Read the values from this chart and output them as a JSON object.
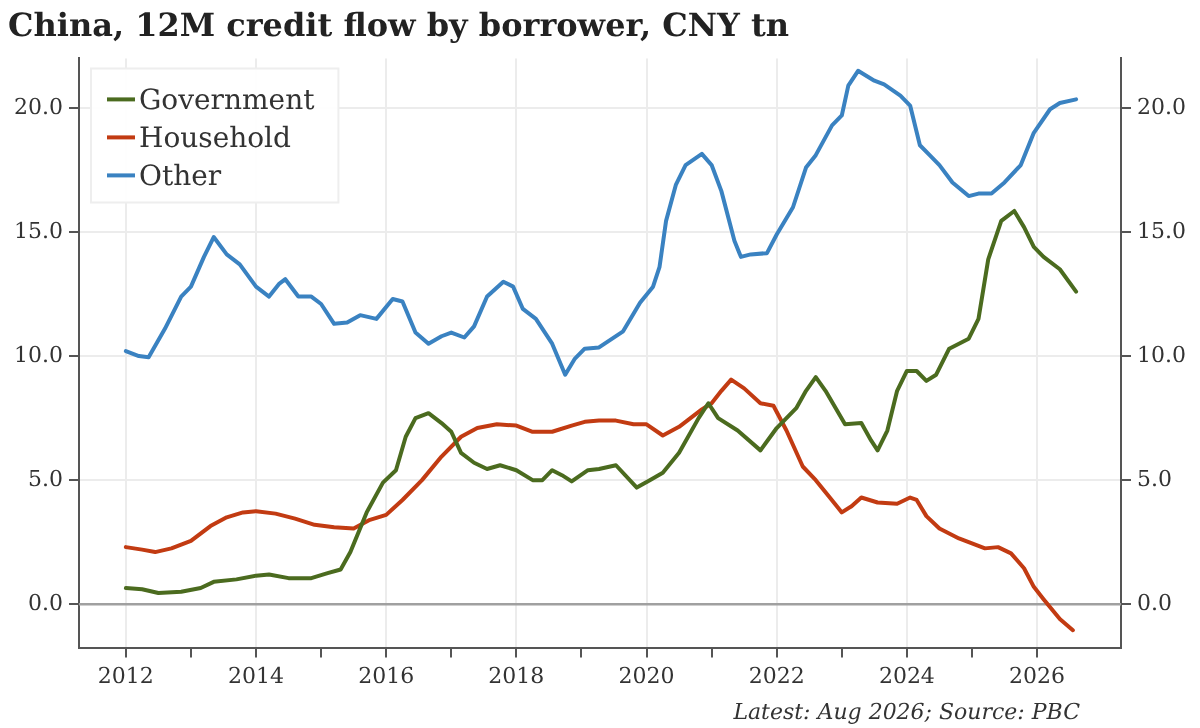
{
  "chart_data": {
    "type": "line",
    "title": "China, 12M credit flow by borrower, CNY tn",
    "annotations": [
      "Latest: Aug 2026; Source: PBC"
    ],
    "xlim": [
      2011.28,
      2027.29
    ],
    "xticks": [
      2012,
      {
        "value": 2013,
        "label": null
      },
      2014,
      {
        "value": 2015,
        "label": null
      },
      2016,
      {
        "value": 2017,
        "label": null
      },
      2018,
      {
        "value": 2019,
        "label": null
      },
      2020,
      {
        "value": 2021,
        "label": null
      },
      2022,
      {
        "value": 2023,
        "label": null
      },
      2024,
      {
        "value": 2025,
        "label": null
      },
      2026
    ],
    "ylim": [
      -1.75,
      22
    ],
    "yticks": [
      {
        "value": 0,
        "label": "0.0"
      },
      {
        "value": 5,
        "label": "5.0"
      },
      {
        "value": 10,
        "label": "10.0"
      },
      {
        "value": 15,
        "label": "15.0"
      },
      {
        "value": 20,
        "label": "20.0"
      }
    ],
    "y2lim": [
      -1.75,
      22
    ],
    "y2ticks": [
      {
        "value": 0,
        "label": "0.0"
      },
      {
        "value": 5,
        "label": "5.0"
      },
      {
        "value": 10,
        "label": "10.0"
      },
      {
        "value": 15,
        "label": "15.0"
      },
      {
        "value": 20,
        "label": "20.0"
      }
    ],
    "grid": true,
    "legend": "top left",
    "ref_lines": [
      {
        "axis": "y",
        "value": 0,
        "color": "#a0a0a0"
      }
    ],
    "series": [
      {
        "name": "Government",
        "color": "#4b6b1f",
        "x": [
          2012.0,
          2012.25,
          2012.5,
          2012.85,
          2013.15,
          2013.35,
          2013.7,
          2014.0,
          2014.2,
          2014.5,
          2014.85,
          2015.1,
          2015.3,
          2015.45,
          2015.7,
          2015.95,
          2016.15,
          2016.3,
          2016.45,
          2016.65,
          2016.85,
          2017.0,
          2017.15,
          2017.35,
          2017.55,
          2017.75,
          2018.0,
          2018.25,
          2018.4,
          2018.55,
          2018.7,
          2018.85,
          2019.1,
          2019.27,
          2019.53,
          2019.85,
          2020.05,
          2020.25,
          2020.5,
          2020.8,
          2020.95,
          2021.1,
          2021.4,
          2021.75,
          2022.0,
          2022.3,
          2022.45,
          2022.6,
          2022.75,
          2023.05,
          2023.3,
          2023.45,
          2023.55,
          2023.7,
          2023.85,
          2024.0,
          2024.15,
          2024.3,
          2024.45,
          2024.65,
          2024.95,
          2025.1,
          2025.25,
          2025.45,
          2025.65,
          2025.8,
          2025.95,
          2026.1,
          2026.35,
          2026.6
        ],
        "values": [
          0.65,
          0.6,
          0.45,
          0.5,
          0.65,
          0.9,
          1.0,
          1.15,
          1.2,
          1.05,
          1.05,
          1.25,
          1.4,
          2.1,
          3.7,
          4.9,
          5.4,
          6.75,
          7.5,
          7.7,
          7.3,
          6.95,
          6.1,
          5.7,
          5.45,
          5.6,
          5.4,
          5.0,
          5.0,
          5.4,
          5.2,
          4.95,
          5.4,
          5.45,
          5.6,
          4.7,
          5.0,
          5.3,
          6.1,
          7.5,
          8.1,
          7.5,
          7.0,
          6.2,
          7.1,
          7.9,
          8.6,
          9.15,
          8.6,
          7.25,
          7.3,
          6.6,
          6.2,
          7.0,
          8.6,
          9.4,
          9.4,
          9.0,
          9.25,
          10.3,
          10.7,
          11.5,
          13.9,
          15.45,
          15.85,
          15.2,
          14.4,
          14.0,
          13.5,
          12.6
        ]
      },
      {
        "name": "Household",
        "color": "#c23b12",
        "x": [
          2012.0,
          2012.25,
          2012.45,
          2012.7,
          2013.0,
          2013.3,
          2013.55,
          2013.8,
          2014.0,
          2014.3,
          2014.6,
          2014.9,
          2015.2,
          2015.5,
          2015.75,
          2016.0,
          2016.25,
          2016.55,
          2016.85,
          2017.15,
          2017.4,
          2017.7,
          2018.0,
          2018.25,
          2018.55,
          2018.85,
          2019.05,
          2019.27,
          2019.53,
          2019.8,
          2020.0,
          2020.25,
          2020.5,
          2020.85,
          2021.0,
          2021.15,
          2021.3,
          2021.5,
          2021.75,
          2021.95,
          2022.15,
          2022.4,
          2022.6,
          2022.8,
          2023.0,
          2023.15,
          2023.3,
          2023.55,
          2023.85,
          2024.05,
          2024.15,
          2024.3,
          2024.5,
          2024.8,
          2024.95,
          2025.2,
          2025.4,
          2025.6,
          2025.8,
          2025.95,
          2026.1,
          2026.35,
          2026.55
        ],
        "values": [
          2.3,
          2.2,
          2.1,
          2.25,
          2.55,
          3.15,
          3.5,
          3.7,
          3.75,
          3.65,
          3.45,
          3.2,
          3.1,
          3.05,
          3.4,
          3.6,
          4.2,
          5.0,
          5.95,
          6.75,
          7.1,
          7.25,
          7.2,
          6.95,
          6.95,
          7.2,
          7.35,
          7.4,
          7.4,
          7.25,
          7.25,
          6.8,
          7.15,
          7.85,
          8.1,
          8.6,
          9.05,
          8.7,
          8.1,
          8.0,
          7.0,
          5.55,
          5.0,
          4.35,
          3.7,
          3.95,
          4.3,
          4.1,
          4.05,
          4.3,
          4.2,
          3.55,
          3.05,
          2.65,
          2.5,
          2.25,
          2.3,
          2.05,
          1.45,
          0.7,
          0.2,
          -0.6,
          -1.05
        ]
      },
      {
        "name": "Other",
        "color": "#3a82c1",
        "x": [
          2012.0,
          2012.2,
          2012.35,
          2012.6,
          2012.85,
          2013.0,
          2013.2,
          2013.35,
          2013.55,
          2013.75,
          2014.0,
          2014.2,
          2014.35,
          2014.45,
          2014.65,
          2014.85,
          2015.0,
          2015.2,
          2015.4,
          2015.6,
          2015.85,
          2016.1,
          2016.25,
          2016.45,
          2016.65,
          2016.85,
          2017.0,
          2017.2,
          2017.35,
          2017.55,
          2017.8,
          2017.95,
          2018.1,
          2018.3,
          2018.55,
          2018.75,
          2018.9,
          2019.05,
          2019.27,
          2019.64,
          2019.9,
          2020.1,
          2020.2,
          2020.3,
          2020.45,
          2020.6,
          2020.85,
          2021.0,
          2021.15,
          2021.35,
          2021.45,
          2021.6,
          2021.85,
          2022.0,
          2022.25,
          2022.45,
          2022.6,
          2022.85,
          2023.0,
          2023.1,
          2023.25,
          2023.5,
          2023.65,
          2023.9,
          2024.05,
          2024.2,
          2024.35,
          2024.5,
          2024.7,
          2024.95,
          2025.1,
          2025.3,
          2025.5,
          2025.75,
          2025.95,
          2026.2,
          2026.35,
          2026.6
        ],
        "values": [
          10.2,
          10.0,
          9.95,
          11.1,
          12.4,
          12.8,
          14.0,
          14.8,
          14.1,
          13.7,
          12.8,
          12.4,
          12.9,
          13.1,
          12.4,
          12.4,
          12.1,
          11.3,
          11.35,
          11.65,
          11.5,
          12.3,
          12.2,
          10.95,
          10.5,
          10.8,
          10.95,
          10.75,
          11.2,
          12.4,
          13.0,
          12.8,
          11.9,
          11.5,
          10.5,
          9.25,
          9.9,
          10.3,
          10.35,
          11.0,
          12.15,
          12.8,
          13.6,
          15.45,
          16.9,
          17.7,
          18.15,
          17.7,
          16.65,
          14.65,
          14.0,
          14.1,
          14.15,
          14.9,
          16.0,
          17.6,
          18.1,
          19.3,
          19.7,
          20.9,
          21.5,
          21.1,
          20.95,
          20.5,
          20.1,
          18.5,
          18.1,
          17.7,
          17.0,
          16.45,
          16.55,
          16.55,
          17.0,
          17.7,
          19.0,
          19.95,
          20.2,
          20.35
        ]
      }
    ]
  }
}
